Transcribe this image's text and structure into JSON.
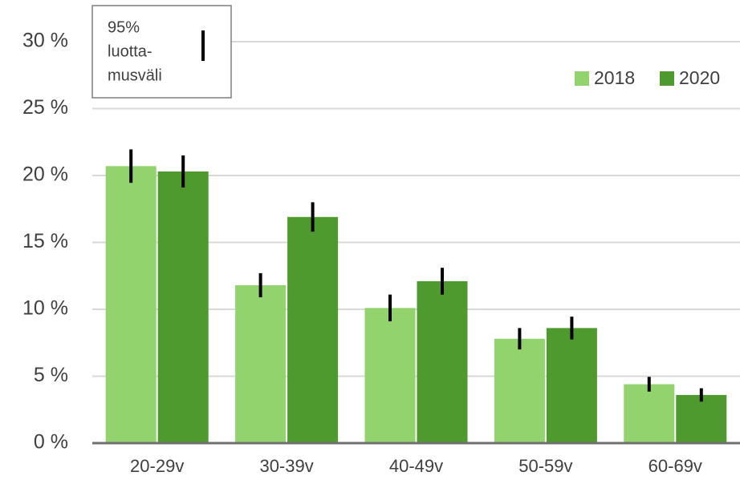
{
  "chart_data": {
    "type": "bar",
    "categories": [
      "20-29v",
      "30-39v",
      "40-49v",
      "50-59v",
      "60-69v"
    ],
    "series": [
      {
        "name": "2018",
        "color": "#92d36e",
        "values": [
          20.7,
          11.8,
          10.1,
          7.8,
          4.4
        ],
        "errors": [
          1.25,
          0.9,
          1.0,
          0.8,
          0.55
        ]
      },
      {
        "name": "2020",
        "color": "#4e9a2f",
        "values": [
          20.3,
          16.9,
          12.1,
          8.6,
          3.6
        ],
        "errors": [
          1.2,
          1.1,
          1.0,
          0.85,
          0.5
        ]
      }
    ],
    "ylim": [
      0,
      30
    ],
    "yticks": [
      {
        "value": 0,
        "label": "0 %"
      },
      {
        "value": 5,
        "label": "5 %"
      },
      {
        "value": 10,
        "label": "10 %"
      },
      {
        "value": 15,
        "label": "15 %"
      },
      {
        "value": 20,
        "label": "20 %"
      },
      {
        "value": 25,
        "label": "25 %"
      },
      {
        "value": 30,
        "label": "30 %"
      }
    ],
    "grid": true,
    "error_legend_lines": [
      "95%",
      "luotta-",
      "musväli"
    ],
    "legend": "upper right"
  }
}
